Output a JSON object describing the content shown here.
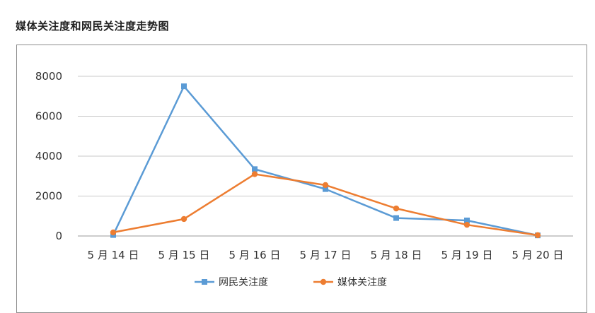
{
  "title": "媒体关注度和网民关注度走势图",
  "colors": {
    "netizen": "#5b9bd5",
    "media": "#ed7d31",
    "grid": "#c8c8c8",
    "axis": "#999999"
  },
  "chart_data": {
    "type": "line",
    "title": "媒体关注度和网民关注度走势图",
    "categories": [
      "5 月 14 日",
      "5 月 15 日",
      "5 月 16 日",
      "5 月 17 日",
      "5 月 18 日",
      "5 月 19 日",
      "5 月 20 日"
    ],
    "series": [
      {
        "name": "网民关注度",
        "values": [
          50,
          7500,
          3350,
          2350,
          900,
          780,
          30
        ]
      },
      {
        "name": "媒体关注度",
        "values": [
          180,
          850,
          3100,
          2550,
          1380,
          560,
          40
        ]
      }
    ],
    "yticks": [
      0,
      2000,
      4000,
      6000,
      8000
    ],
    "ylim": [
      0,
      8000
    ],
    "grid": true,
    "legend_position": "bottom",
    "markers": [
      "square",
      "circle"
    ]
  }
}
